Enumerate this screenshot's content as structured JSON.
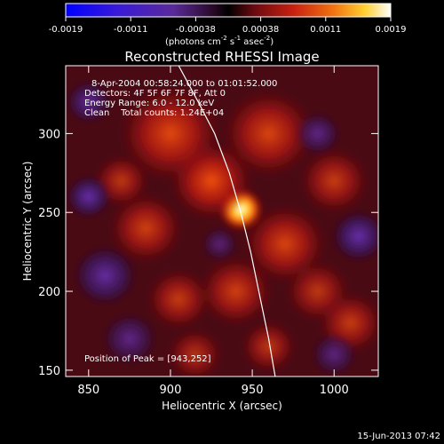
{
  "chart_data": {
    "type": "heatmap",
    "title": "Reconstructed RHESSI Image",
    "xlabel": "Heliocentric X (arcsec)",
    "ylabel": "Heliocentric Y (arcsec)",
    "xlim": [
      836,
      1027
    ],
    "ylim": [
      146,
      343
    ],
    "x_ticks": [
      850,
      900,
      950,
      1000
    ],
    "y_ticks": [
      150,
      200,
      250,
      300
    ],
    "colorbar": {
      "ticks": [
        "-0.0019",
        "-0.0011",
        "-0.00038",
        "0.00038",
        "0.0011",
        "0.0019"
      ],
      "range": [
        -0.0019,
        0.0019
      ],
      "unit_label": "(photons cm",
      "unit_label_a": "s",
      "unit_label_b": "asec",
      "unit_label_end": ")",
      "exp1": "-2",
      "exp2": "-1",
      "exp3": "-2"
    },
    "annotations": {
      "time_range": "8-Apr-2004 00:58:24.000 to 01:01:52.000",
      "detectors": "Detectors: 4F 5F 6F 7F 8F, Att 0",
      "energy": "Energy Range: 6.0 - 12.0 keV",
      "clean": "Clean    Total counts: 1.24E+04",
      "peak": "Position of Peak = [943,252]"
    },
    "peak": {
      "x": 943,
      "y": 252
    },
    "limb_curve": [
      {
        "x": 905,
        "y": 343
      },
      {
        "x": 917,
        "y": 320
      },
      {
        "x": 927,
        "y": 300
      },
      {
        "x": 936,
        "y": 275
      },
      {
        "x": 943,
        "y": 250
      },
      {
        "x": 949,
        "y": 225
      },
      {
        "x": 955,
        "y": 195
      },
      {
        "x": 960,
        "y": 170
      },
      {
        "x": 964,
        "y": 146
      }
    ],
    "blobs": [
      {
        "x": 943,
        "y": 252,
        "r": 10,
        "v": 0.0019
      },
      {
        "x": 925,
        "y": 270,
        "r": 18,
        "v": 0.0011
      },
      {
        "x": 900,
        "y": 300,
        "r": 22,
        "v": 0.0009
      },
      {
        "x": 960,
        "y": 300,
        "r": 20,
        "v": 0.0008
      },
      {
        "x": 885,
        "y": 240,
        "r": 16,
        "v": 0.0007
      },
      {
        "x": 970,
        "y": 230,
        "r": 18,
        "v": 0.0008
      },
      {
        "x": 1000,
        "y": 270,
        "r": 15,
        "v": 0.0006
      },
      {
        "x": 940,
        "y": 200,
        "r": 16,
        "v": 0.0007
      },
      {
        "x": 990,
        "y": 200,
        "r": 14,
        "v": 0.0005
      },
      {
        "x": 1010,
        "y": 180,
        "r": 14,
        "v": 0.0006
      },
      {
        "x": 870,
        "y": 270,
        "r": 12,
        "v": 0.0005
      },
      {
        "x": 905,
        "y": 195,
        "r": 14,
        "v": 0.0006
      },
      {
        "x": 960,
        "y": 165,
        "r": 12,
        "v": 0.0005
      },
      {
        "x": 915,
        "y": 160,
        "r": 12,
        "v": 0.0004
      },
      {
        "x": 860,
        "y": 210,
        "r": 14,
        "v": -0.0009
      },
      {
        "x": 850,
        "y": 260,
        "r": 10,
        "v": -0.001
      },
      {
        "x": 1015,
        "y": 235,
        "r": 12,
        "v": -0.001
      },
      {
        "x": 850,
        "y": 320,
        "r": 10,
        "v": -0.0008
      },
      {
        "x": 875,
        "y": 170,
        "r": 12,
        "v": -0.0006
      },
      {
        "x": 990,
        "y": 300,
        "r": 10,
        "v": -0.0006
      },
      {
        "x": 1000,
        "y": 160,
        "r": 10,
        "v": -0.0005
      },
      {
        "x": 930,
        "y": 230,
        "r": 8,
        "v": -0.0004
      }
    ]
  },
  "footer": {
    "timestamp": "15-Jun-2013 07:42"
  }
}
